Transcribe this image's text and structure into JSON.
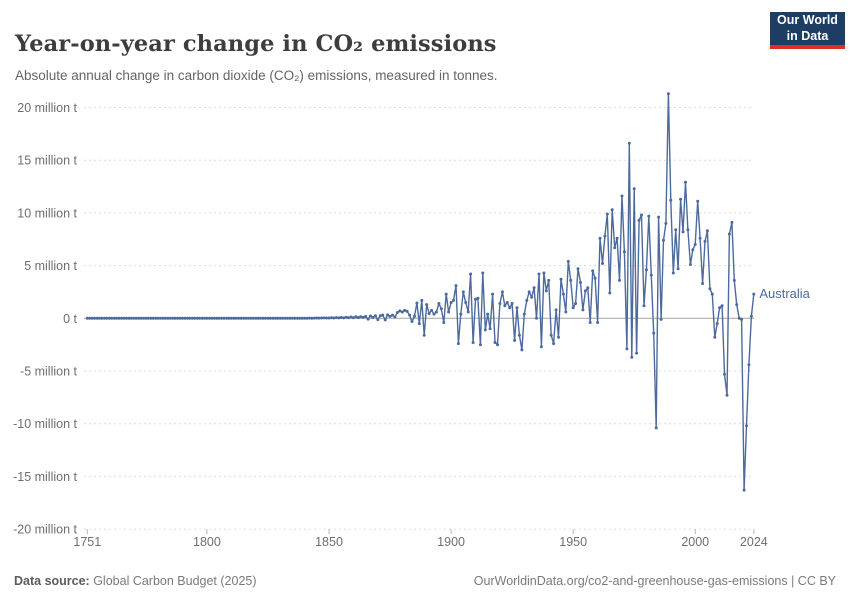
{
  "header": {
    "title": "Year-on-year change in CO₂ emissions",
    "subtitle": "Absolute annual change in carbon dioxide (CO₂) emissions, measured in tonnes.",
    "logo": {
      "line1": "Our World",
      "line2": "in Data"
    }
  },
  "footer": {
    "source_label": "Data source:",
    "source_value": " Global Carbon Budget (2025)",
    "link_text": "OurWorldinData.org/co2-and-greenhouse-gas-emissions | CC BY"
  },
  "colors": {
    "line": "#4c6a9c",
    "entity_label": "#4c6a9c",
    "grid": "#dcdcdc",
    "zero_line": "#a3a3a3",
    "tick": "#b5b5b5",
    "axis_text": "#6e6e6e",
    "logo_bg": "#1d3d63",
    "logo_accent": "#dc3022"
  },
  "chart_data": {
    "type": "line",
    "title": "Year-on-year change in CO₂ emissions",
    "subtitle": "Absolute annual change in carbon dioxide (CO₂) emissions, measured in tonnes.",
    "unit": "million tonnes",
    "grid": "dashed, horizontal only",
    "legend_position": "end-of-line label",
    "x_range": [
      1751,
      2024
    ],
    "y_range_million_t": [
      -20,
      20
    ],
    "y_axis": {
      "ticks": [
        {
          "value": 20,
          "label": "20 million t"
        },
        {
          "value": 15,
          "label": "15 million t"
        },
        {
          "value": 10,
          "label": "10 million t"
        },
        {
          "value": 5,
          "label": "5 million t"
        },
        {
          "value": 0,
          "label": "0 t"
        },
        {
          "value": -5,
          "label": "-5 million t"
        },
        {
          "value": -10,
          "label": "-10 million t"
        },
        {
          "value": -15,
          "label": "-15 million t"
        },
        {
          "value": -20,
          "label": "-20 million t"
        }
      ]
    },
    "x_axis": {
      "ticks": [
        {
          "value": 1751,
          "label": "1751"
        },
        {
          "value": 1800,
          "label": "1800"
        },
        {
          "value": 1850,
          "label": "1850"
        },
        {
          "value": 1900,
          "label": "1900"
        },
        {
          "value": 1950,
          "label": "1950"
        },
        {
          "value": 2000,
          "label": "2000"
        },
        {
          "value": 2024,
          "label": "2024"
        }
      ]
    },
    "series": [
      {
        "name": "Australia",
        "start_year": 1751,
        "end_year": 2024,
        "unit": "million tonnes change vs previous year",
        "values": [
          0,
          0,
          0,
          0,
          0,
          0,
          0,
          0,
          0,
          0,
          0,
          0,
          0,
          0,
          0,
          0,
          0,
          0,
          0,
          0,
          0,
          0,
          0,
          0,
          0,
          0,
          0,
          0,
          0,
          0,
          0,
          0,
          0,
          0,
          0,
          0,
          0,
          0,
          0,
          0,
          0,
          0,
          0,
          0,
          0,
          0,
          0,
          0,
          0,
          0,
          0,
          0,
          0,
          0,
          0,
          0,
          0,
          0,
          0,
          0,
          0,
          0,
          0,
          0,
          0,
          0,
          0,
          0,
          0,
          0,
          0,
          0,
          0,
          0,
          0,
          0,
          0,
          0,
          0,
          0,
          0,
          0,
          0,
          0,
          0,
          0,
          0,
          0,
          0,
          0,
          0.01,
          0.02,
          0.01,
          0.02,
          0.03,
          0.02,
          0.03,
          0.04,
          0.03,
          0.03,
          0.06,
          0.03,
          0.07,
          0.04,
          0.08,
          0.04,
          0.1,
          0.05,
          0.12,
          0.06,
          0.14,
          0.07,
          0.15,
          0.09,
          0.18,
          -0.08,
          0.22,
          0.08,
          0.25,
          -0.12,
          0.24,
          0.3,
          -0.15,
          0.32,
          0.18,
          0.3,
          0.12,
          0.55,
          0.7,
          0.6,
          0.75,
          0.65,
          0.3,
          -0.3,
          0.2,
          1.45,
          -0.5,
          1.7,
          -1.6,
          1.3,
          0.45,
          0.75,
          0.4,
          0.6,
          1.4,
          0.9,
          -0.4,
          2.3,
          0.6,
          1.5,
          1.7,
          3.1,
          -2.4,
          0.4,
          2.5,
          1.5,
          0.6,
          4.2,
          -2.3,
          1.8,
          1.9,
          -2.5,
          4.3,
          -1.1,
          0.4,
          -1.0,
          2.3,
          -2.3,
          -2.5,
          1.4,
          2.5,
          1.2,
          1.5,
          1.0,
          1.4,
          -2.1,
          1.0,
          -1.6,
          -3.0,
          0.4,
          1.7,
          2.5,
          2.0,
          2.9,
          0.0,
          4.2,
          -2.7,
          4.3,
          2.6,
          3.6,
          -1.6,
          -2.4,
          0.8,
          -1.8,
          3.7,
          2.3,
          0.6,
          5.4,
          3.6,
          1.0,
          1.4,
          4.7,
          3.4,
          0.8,
          2.6,
          2.9,
          -0.4,
          4.5,
          3.8,
          -0.4,
          7.6,
          5.2,
          7.8,
          9.9,
          2.4,
          10.3,
          6.7,
          7.6,
          3.6,
          11.6,
          6.3,
          -2.9,
          16.6,
          -3.7,
          12.3,
          -3.3,
          9.3,
          9.8,
          1.2,
          4.6,
          9.7,
          4.1,
          -1.4,
          -10.4,
          9.6,
          -0.1,
          7.4,
          9.0,
          21.3,
          11.2,
          4.3,
          8.4,
          4.7,
          11.3,
          8.2,
          12.9,
          8.4,
          5.1,
          6.5,
          7.0,
          11.1,
          7.6,
          3.3,
          7.3,
          8.3,
          2.8,
          2.3,
          -1.8,
          -0.5,
          1.0,
          1.2,
          -5.3,
          -7.3,
          8.0,
          9.1,
          3.6,
          1.3,
          0.0,
          -0.1,
          -16.3,
          -10.2,
          -4.4,
          0.2,
          2.3
        ]
      }
    ]
  }
}
